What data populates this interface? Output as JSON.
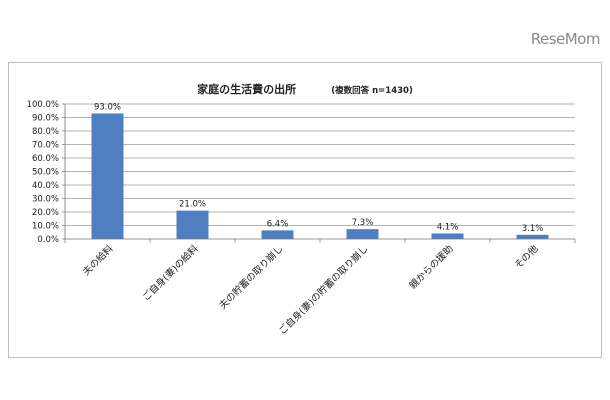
{
  "watermark": "ReseMom",
  "chart_data": {
    "type": "bar",
    "title": "家庭の生活費の出所",
    "subtitle": "(複数回答 n=1430)",
    "categories": [
      "夫の給料",
      "ご自身(妻)の給料",
      "夫の貯蓄の取り崩し",
      "ご自身(妻)の貯蓄の取り崩し",
      "親からの援助",
      "その他"
    ],
    "values": [
      93.0,
      21.0,
      6.4,
      7.3,
      4.1,
      3.1
    ],
    "data_labels": [
      "93.0%",
      "21.0%",
      "6.4%",
      "7.3%",
      "4.1%",
      "3.1%"
    ],
    "ylim": [
      0,
      100
    ],
    "yticks": [
      0,
      10,
      20,
      30,
      40,
      50,
      60,
      70,
      80,
      90,
      100
    ],
    "ytick_labels": [
      "0.0%",
      "10.0%",
      "20.0%",
      "30.0%",
      "40.0%",
      "50.0%",
      "60.0%",
      "70.0%",
      "80.0%",
      "90.0%",
      "100.0%"
    ],
    "grid": true,
    "bar_color": "#4f7fc0"
  }
}
